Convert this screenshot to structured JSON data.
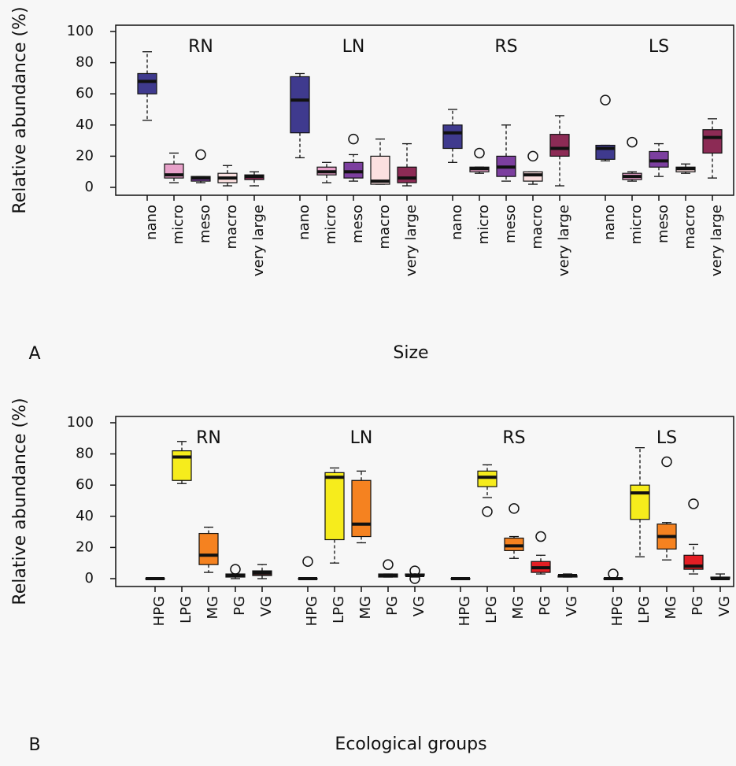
{
  "chart_data": [
    {
      "type": "box",
      "panel": "A",
      "xlabel": "Size",
      "ylabel": "Relative abundance (%)",
      "ylim": [
        0,
        100
      ],
      "yticks": [
        0,
        20,
        40,
        60,
        80,
        100
      ],
      "categories": [
        "nano",
        "micro",
        "meso",
        "macro",
        "very large"
      ],
      "colors": [
        "#3f3a8e",
        "#e7a1c9",
        "#7c3f9f",
        "#fbe0e0",
        "#8c2b55"
      ],
      "groups": [
        {
          "name": "RN",
          "boxes": [
            {
              "min": 43,
              "q1": 60,
              "median": 68,
              "q3": 73,
              "max": 87,
              "outliers": []
            },
            {
              "min": 3,
              "q1": 6,
              "median": 8,
              "q3": 15,
              "max": 22,
              "outliers": []
            },
            {
              "min": 3,
              "q1": 4,
              "median": 6,
              "q3": 7,
              "max": 7,
              "outliers": [
                21
              ]
            },
            {
              "min": 1,
              "q1": 3,
              "median": 6,
              "q3": 9,
              "max": 14,
              "outliers": []
            },
            {
              "min": 1,
              "q1": 5,
              "median": 7,
              "q3": 8,
              "max": 10,
              "outliers": []
            }
          ]
        },
        {
          "name": "LN",
          "boxes": [
            {
              "min": 19,
              "q1": 35,
              "median": 56,
              "q3": 71,
              "max": 73,
              "outliers": []
            },
            {
              "min": 3,
              "q1": 8,
              "median": 10,
              "q3": 13,
              "max": 16,
              "outliers": []
            },
            {
              "min": 4,
              "q1": 6,
              "median": 10,
              "q3": 16,
              "max": 21,
              "outliers": [
                31
              ]
            },
            {
              "min": 2,
              "q1": 2,
              "median": 4,
              "q3": 20,
              "max": 31,
              "outliers": []
            },
            {
              "min": 1,
              "q1": 3,
              "median": 6,
              "q3": 13,
              "max": 28,
              "outliers": []
            }
          ]
        },
        {
          "name": "RS",
          "boxes": [
            {
              "min": 16,
              "q1": 25,
              "median": 35,
              "q3": 40,
              "max": 50,
              "outliers": []
            },
            {
              "min": 9,
              "q1": 10,
              "median": 12,
              "q3": 13,
              "max": 13,
              "outliers": [
                22
              ]
            },
            {
              "min": 4,
              "q1": 7,
              "median": 13,
              "q3": 20,
              "max": 40,
              "outliers": []
            },
            {
              "min": 2,
              "q1": 4,
              "median": 8,
              "q3": 10,
              "max": 10,
              "outliers": [
                20
              ]
            },
            {
              "min": 1,
              "q1": 20,
              "median": 25,
              "q3": 34,
              "max": 46,
              "outliers": []
            }
          ]
        },
        {
          "name": "LS",
          "boxes": [
            {
              "min": 17,
              "q1": 18,
              "median": 25,
              "q3": 27,
              "max": 27,
              "outliers": [
                56
              ]
            },
            {
              "min": 4,
              "q1": 5,
              "median": 7,
              "q3": 9,
              "max": 10,
              "outliers": [
                29
              ]
            },
            {
              "min": 7,
              "q1": 13,
              "median": 17,
              "q3": 23,
              "max": 28,
              "outliers": []
            },
            {
              "min": 9,
              "q1": 10,
              "median": 12,
              "q3": 13,
              "max": 15,
              "outliers": []
            },
            {
              "min": 6,
              "q1": 22,
              "median": 32,
              "q3": 37,
              "max": 44,
              "outliers": []
            }
          ]
        }
      ]
    },
    {
      "type": "box",
      "panel": "B",
      "xlabel": "Ecological groups",
      "ylabel": "Relative abundance (%)",
      "ylim": [
        0,
        100
      ],
      "yticks": [
        0,
        20,
        40,
        60,
        80,
        100
      ],
      "categories": [
        "HPG",
        "LPG",
        "MG",
        "PG",
        "VG"
      ],
      "colors": [
        "#3a2020",
        "#f6ec1c",
        "#f58220",
        "#e31e24",
        "#3a2020"
      ],
      "groups": [
        {
          "name": "RN",
          "boxes": [
            {
              "min": 0,
              "q1": 0,
              "median": 0,
              "q3": 0,
              "max": 0,
              "outliers": []
            },
            {
              "min": 61,
              "q1": 63,
              "median": 78,
              "q3": 82,
              "max": 88,
              "outliers": []
            },
            {
              "min": 4,
              "q1": 9,
              "median": 15,
              "q3": 29,
              "max": 33,
              "outliers": []
            },
            {
              "min": 0,
              "q1": 1,
              "median": 2,
              "q3": 3,
              "max": 3,
              "outliers": [
                6
              ]
            },
            {
              "min": 0,
              "q1": 2,
              "median": 4,
              "q3": 5,
              "max": 9,
              "outliers": []
            }
          ]
        },
        {
          "name": "LN",
          "boxes": [
            {
              "min": 0,
              "q1": 0,
              "median": 0,
              "q3": 0,
              "max": 0,
              "outliers": [
                11
              ]
            },
            {
              "min": 10,
              "q1": 25,
              "median": 65,
              "q3": 68,
              "max": 71,
              "outliers": []
            },
            {
              "min": 23,
              "q1": 27,
              "median": 35,
              "q3": 63,
              "max": 69,
              "outliers": []
            },
            {
              "min": 1,
              "q1": 1,
              "median": 2,
              "q3": 3,
              "max": 3,
              "outliers": [
                9
              ]
            },
            {
              "min": 1,
              "q1": 2,
              "median": 2,
              "q3": 3,
              "max": 3,
              "outliers": [
                5,
                0
              ]
            }
          ]
        },
        {
          "name": "RS",
          "boxes": [
            {
              "min": 0,
              "q1": 0,
              "median": 0,
              "q3": 0,
              "max": 0,
              "outliers": []
            },
            {
              "min": 52,
              "q1": 59,
              "median": 65,
              "q3": 69,
              "max": 73,
              "outliers": [
                43
              ]
            },
            {
              "min": 13,
              "q1": 18,
              "median": 21,
              "q3": 26,
              "max": 27,
              "outliers": [
                45
              ]
            },
            {
              "min": 3,
              "q1": 4,
              "median": 7,
              "q3": 11,
              "max": 15,
              "outliers": [
                27
              ]
            },
            {
              "min": 1,
              "q1": 1,
              "median": 2,
              "q3": 2,
              "max": 3,
              "outliers": []
            }
          ]
        },
        {
          "name": "LS",
          "boxes": [
            {
              "min": 0,
              "q1": 0,
              "median": 0,
              "q3": 0,
              "max": 0,
              "outliers": [
                3
              ]
            },
            {
              "min": 14,
              "q1": 38,
              "median": 55,
              "q3": 60,
              "max": 84,
              "outliers": []
            },
            {
              "min": 12,
              "q1": 19,
              "median": 27,
              "q3": 35,
              "max": 36,
              "outliers": [
                75
              ]
            },
            {
              "min": 3,
              "q1": 6,
              "median": 8,
              "q3": 15,
              "max": 22,
              "outliers": [
                48
              ]
            },
            {
              "min": 0,
              "q1": 0,
              "median": 0,
              "q3": 1,
              "max": 3,
              "outliers": []
            }
          ]
        }
      ]
    }
  ]
}
